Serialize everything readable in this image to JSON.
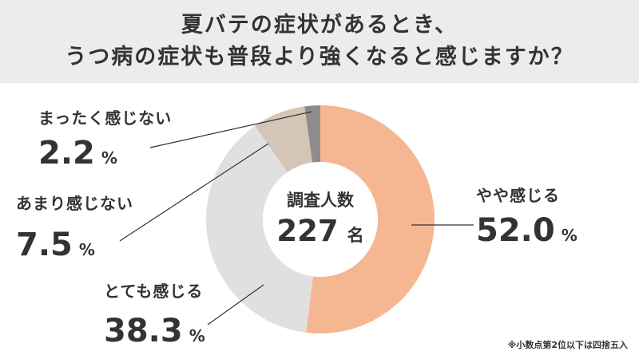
{
  "title": {
    "line1": "夏バテの症状があるとき、",
    "line2": "うつ病の症状も普段より強くなると感じますか？"
  },
  "chart_data": {
    "type": "pie",
    "donut": true,
    "categories": [
      "やや感じる",
      "とても感じる",
      "あまり感じない",
      "まったく感じない"
    ],
    "values": [
      52.0,
      38.3,
      7.5,
      2.2
    ],
    "labels": [
      "52.0",
      "38.3",
      "7.5",
      "2.2"
    ],
    "unit": "%",
    "colors": [
      "#f5b792",
      "#e0e0e0",
      "#d4c5b6",
      "#8c8c8c"
    ],
    "start": "top",
    "direction": "clockwise",
    "center": {
      "label": "調査人数",
      "value": "227",
      "unit": "名"
    }
  },
  "footnote": "※小数点第2位以下は四捨五入"
}
